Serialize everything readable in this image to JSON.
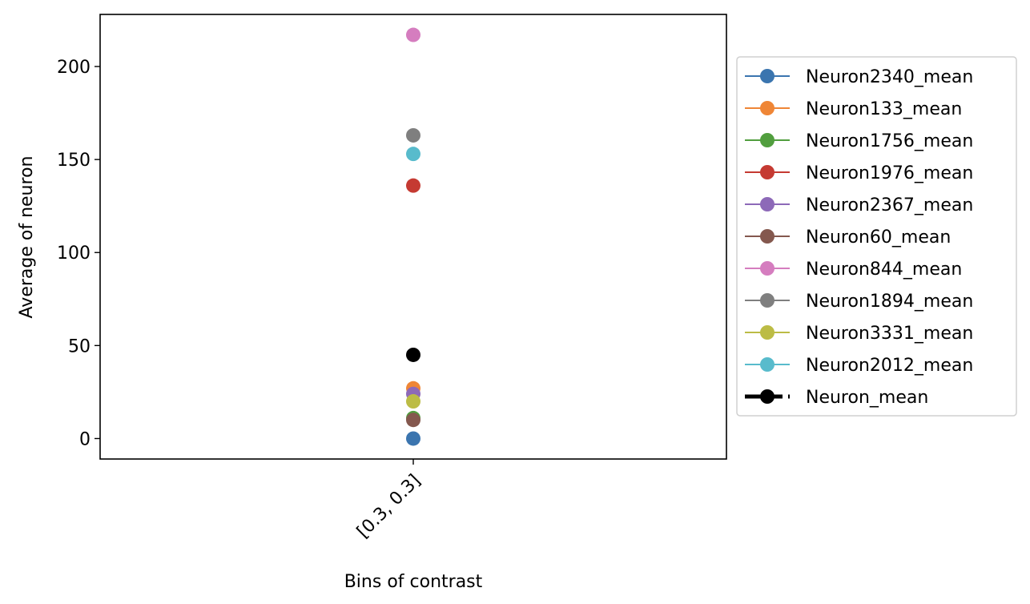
{
  "chart_data": {
    "type": "line",
    "title": "",
    "xlabel": "Bins of contrast",
    "ylabel": "Average of neuron",
    "categories": [
      "[0.3,  0.3]"
    ],
    "ylim": [
      -11,
      228
    ],
    "yticks": [
      0,
      50,
      100,
      150,
      200
    ],
    "ytick_labels": [
      "0",
      "50",
      "100",
      "150",
      "200"
    ],
    "grid": false,
    "legend_position": "outside right",
    "series": [
      {
        "name": "Neuron2340_mean",
        "color": "#3b75af",
        "style": "solid",
        "values": [
          0
        ]
      },
      {
        "name": "Neuron133_mean",
        "color": "#ef8636",
        "style": "solid",
        "values": [
          27
        ]
      },
      {
        "name": "Neuron1756_mean",
        "color": "#519e3e",
        "style": "solid",
        "values": [
          11
        ]
      },
      {
        "name": "Neuron1976_mean",
        "color": "#c53a32",
        "style": "solid",
        "values": [
          136
        ]
      },
      {
        "name": "Neuron2367_mean",
        "color": "#8d69b8",
        "style": "solid",
        "values": [
          24
        ]
      },
      {
        "name": "Neuron60_mean",
        "color": "#84584e",
        "style": "solid",
        "values": [
          10
        ]
      },
      {
        "name": "Neuron844_mean",
        "color": "#d57dbf",
        "style": "solid",
        "values": [
          217
        ]
      },
      {
        "name": "Neuron1894_mean",
        "color": "#7f7f7f",
        "style": "solid",
        "values": [
          163
        ]
      },
      {
        "name": "Neuron3331_mean",
        "color": "#bcbc45",
        "style": "solid",
        "values": [
          20
        ]
      },
      {
        "name": "Neuron2012_mean",
        "color": "#58bbcc",
        "style": "solid",
        "values": [
          153
        ]
      },
      {
        "name": "Neuron_mean",
        "color": "#000000",
        "style": "dashed-bold",
        "values": [
          45
        ]
      }
    ]
  }
}
